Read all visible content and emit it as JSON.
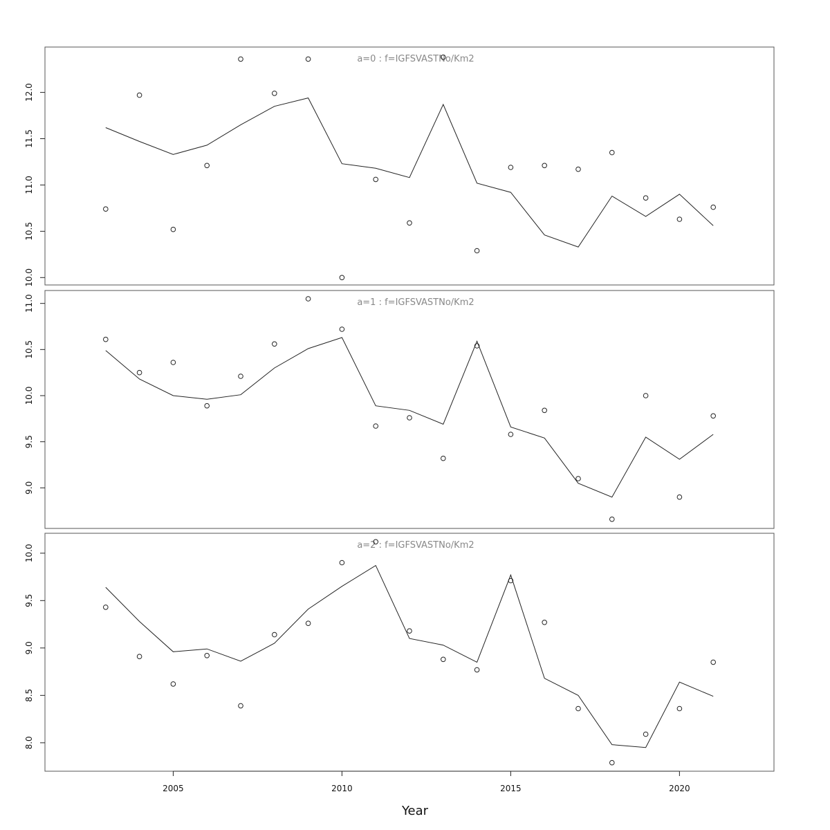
{
  "chart_data": {
    "type": "line",
    "xlabel": "Year",
    "xlim": [
      2001.2,
      2022.8
    ],
    "xticks": [
      2005,
      2010,
      2015,
      2020
    ],
    "x": [
      2003,
      2004,
      2005,
      2006,
      2007,
      2008,
      2009,
      2010,
      2011,
      2012,
      2013,
      2014,
      2015,
      2016,
      2017,
      2018,
      2019,
      2020,
      2021
    ],
    "grid": false,
    "panels": [
      {
        "title": "a=0  :  f=IGFSVASTNo/Km2",
        "ylim": [
          9.92,
          12.49
        ],
        "yticks": [
          10.0,
          10.5,
          11.0,
          11.5,
          12.0
        ],
        "ytick_labels": [
          "10.0",
          "10.5",
          "11.0",
          "11.5",
          "12.0"
        ],
        "series": [
          {
            "kind": "line",
            "values": [
              11.62,
              11.47,
              11.33,
              11.43,
              11.65,
              11.85,
              11.94,
              11.23,
              11.18,
              11.08,
              11.87,
              11.02,
              10.92,
              10.46,
              10.33,
              10.88,
              10.66,
              10.9,
              10.56
            ]
          },
          {
            "kind": "points",
            "values": [
              10.74,
              11.97,
              10.52,
              11.21,
              12.36,
              11.99,
              12.36,
              10.0,
              11.06,
              10.59,
              12.38,
              10.29,
              11.19,
              11.21,
              11.17,
              11.35,
              10.86,
              10.63,
              10.76
            ]
          }
        ]
      },
      {
        "title": "a=1  :  f=IGFSVASTNo/Km2",
        "ylim": [
          8.56,
          11.14
        ],
        "yticks": [
          9.0,
          9.5,
          10.0,
          10.5,
          11.0
        ],
        "ytick_labels": [
          "9.0",
          "9.5",
          "10.0",
          "10.5",
          "11.0"
        ],
        "series": [
          {
            "kind": "line",
            "values": [
              10.49,
              10.18,
              10.0,
              9.96,
              10.01,
              10.3,
              10.51,
              10.63,
              9.89,
              9.84,
              9.69,
              10.59,
              9.66,
              9.54,
              9.05,
              8.9,
              9.55,
              9.31,
              9.58
            ]
          },
          {
            "kind": "points",
            "values": [
              10.61,
              10.25,
              10.36,
              9.89,
              10.21,
              10.56,
              11.05,
              10.72,
              9.67,
              9.76,
              9.32,
              10.54,
              9.58,
              9.84,
              9.1,
              8.66,
              10.0,
              8.9,
              9.78
            ]
          }
        ]
      },
      {
        "title": "a=2  :  f=IGFSVASTNo/Km2",
        "ylim": [
          7.7,
          10.21
        ],
        "yticks": [
          8.0,
          8.5,
          9.0,
          9.5,
          10.0
        ],
        "ytick_labels": [
          "8.0",
          "8.5",
          "9.0",
          "9.5",
          "10.0"
        ],
        "series": [
          {
            "kind": "line",
            "values": [
              9.64,
              9.28,
              8.96,
              8.99,
              8.86,
              9.05,
              9.41,
              9.65,
              9.87,
              9.1,
              9.03,
              8.85,
              9.77,
              8.68,
              8.5,
              7.98,
              7.95,
              8.64,
              8.49
            ]
          },
          {
            "kind": "points",
            "values": [
              9.43,
              8.91,
              8.62,
              8.92,
              8.39,
              9.14,
              9.26,
              9.9,
              10.12,
              9.18,
              8.88,
              8.77,
              9.71,
              9.27,
              8.36,
              7.79,
              8.09,
              8.36,
              8.85
            ]
          }
        ]
      }
    ]
  }
}
